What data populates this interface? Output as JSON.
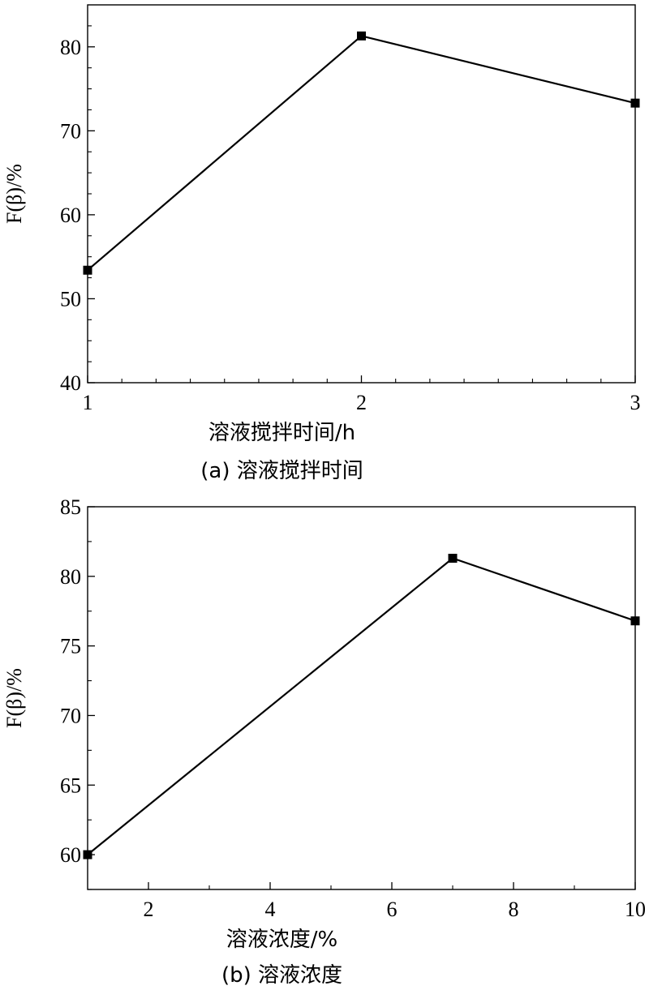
{
  "chart_data": [
    {
      "type": "line",
      "caption": "(a) 溶液搅拌时间",
      "xlabel": "溶液搅拌时间/h",
      "ylabel": "F(β)/%",
      "xlim": [
        1,
        3
      ],
      "ylim": [
        40,
        85
      ],
      "xticks": [
        1,
        2,
        3
      ],
      "xticks_minor": [
        1.125,
        1.25,
        1.375,
        1.5,
        1.625,
        1.75,
        1.875,
        2.125,
        2.25,
        2.375,
        2.5,
        2.625,
        2.75,
        2.875
      ],
      "yticks": [
        40,
        50,
        60,
        70,
        80
      ],
      "yticks_minor": [
        42.5,
        45,
        47.5,
        52.5,
        55,
        57.5,
        62.5,
        65,
        67.5,
        72.5,
        75,
        77.5,
        82.5
      ],
      "grid": false,
      "series": [
        {
          "x": [
            1,
            2,
            3
          ],
          "y": [
            53.4,
            81.3,
            73.3
          ]
        }
      ]
    },
    {
      "type": "line",
      "caption": "(b) 溶液浓度",
      "xlabel": "溶液浓度/%",
      "ylabel": "F(β)/%",
      "xlim": [
        1,
        10
      ],
      "ylim": [
        57.5,
        85
      ],
      "xticks": [
        2,
        4,
        6,
        8,
        10
      ],
      "xticks_minor": [
        3,
        5,
        7,
        9
      ],
      "yticks": [
        60,
        65,
        70,
        75,
        80,
        85
      ],
      "yticks_minor": [
        57.5,
        62.5,
        67.5,
        72.5,
        77.5,
        82.5
      ],
      "grid": false,
      "series": [
        {
          "x": [
            1,
            7,
            10
          ],
          "y": [
            60.0,
            81.3,
            76.8
          ]
        }
      ]
    }
  ]
}
